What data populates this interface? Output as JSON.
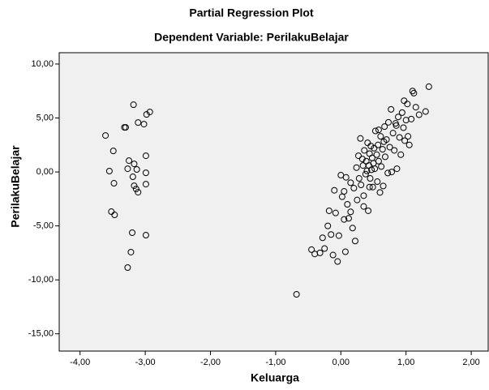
{
  "chart_data": {
    "type": "scatter",
    "title": "Partial Regression Plot",
    "subtitle": "Dependent Variable: PerilakuBelajar",
    "xlabel": "Keluarga",
    "ylabel": "PerilakuBelajar",
    "marker_color": "#000000",
    "plot_background": "#f0f0f0",
    "grid": false,
    "xlim": [
      -4.32,
      2.26
    ],
    "ylim": [
      -16.6,
      11.05
    ],
    "xticks": [
      {
        "value": -4,
        "label": "-4,00"
      },
      {
        "value": -3,
        "label": "-3,00"
      },
      {
        "value": -2,
        "label": "-2,00"
      },
      {
        "value": -1,
        "label": "-1,00"
      },
      {
        "value": 0,
        "label": "0,00"
      },
      {
        "value": 1,
        "label": "1,00"
      },
      {
        "value": 2,
        "label": "2,00"
      }
    ],
    "yticks": [
      {
        "value": 10,
        "label": "10,00"
      },
      {
        "value": 5,
        "label": "5,00"
      },
      {
        "value": 0,
        "label": "0,00"
      },
      {
        "value": -5,
        "label": "-5,00"
      },
      {
        "value": -10,
        "label": "-10,00"
      },
      {
        "value": -15,
        "label": "-15,00"
      }
    ],
    "x": [
      -3.18,
      -3.61,
      -3.3,
      -3.32,
      -3.11,
      -3.02,
      -2.98,
      -2.93,
      -3.49,
      -2.99,
      -3.55,
      -3.25,
      -3.17,
      -3.27,
      -3.13,
      -2.99,
      -3.19,
      -3.48,
      -3.17,
      -3.14,
      -3.11,
      -2.99,
      -3.52,
      -3.47,
      -3.2,
      -2.99,
      -3.22,
      -3.27,
      -0.68,
      -0.45,
      -0.4,
      -0.32,
      -0.28,
      -0.25,
      -0.2,
      -0.18,
      -0.15,
      -0.12,
      -0.1,
      -0.08,
      -0.05,
      -0.03,
      0.0,
      0.02,
      0.05,
      0.07,
      0.08,
      0.1,
      0.12,
      0.15,
      0.18,
      0.2,
      0.22,
      0.24,
      0.25,
      0.27,
      0.28,
      0.3,
      0.31,
      0.33,
      0.34,
      0.35,
      0.36,
      0.38,
      0.39,
      0.4,
      0.41,
      0.42,
      0.43,
      0.44,
      0.45,
      0.46,
      0.47,
      0.48,
      0.49,
      0.5,
      0.51,
      0.52,
      0.53,
      0.55,
      0.56,
      0.57,
      0.58,
      0.6,
      0.61,
      0.62,
      0.64,
      0.65,
      0.67,
      0.68,
      0.7,
      0.72,
      0.73,
      0.75,
      0.77,
      0.78,
      0.8,
      0.82,
      0.84,
      0.86,
      0.88,
      0.9,
      0.92,
      0.94,
      0.96,
      0.98,
      1.0,
      1.02,
      1.05,
      1.08,
      1.12,
      1.15,
      1.2,
      1.3,
      1.35,
      1.1,
      0.97,
      1.03,
      0.85,
      0.35,
      0.15,
      0.05,
      0.44,
      0.58,
      0.66
    ],
    "y": [
      6.23,
      3.38,
      4.13,
      4.13,
      4.58,
      4.43,
      5.33,
      5.56,
      1.95,
      1.5,
      0.08,
      1.05,
      0.75,
      0.3,
      0.23,
      -0.08,
      -0.45,
      -1.05,
      -1.28,
      -1.58,
      -1.88,
      -1.13,
      -3.68,
      -3.98,
      -5.63,
      -5.86,
      -7.43,
      -8.86,
      -11.34,
      -7.2,
      -7.6,
      -7.5,
      -6.1,
      -7.1,
      -5.0,
      -3.6,
      -5.8,
      -7.7,
      -1.7,
      -3.8,
      -8.3,
      -5.9,
      -0.3,
      -2.3,
      -4.4,
      -7.4,
      -0.5,
      -3.0,
      -4.3,
      -1.0,
      -5.2,
      -1.5,
      -6.4,
      0.4,
      -2.6,
      1.5,
      -0.6,
      3.1,
      -1.2,
      1.2,
      0.6,
      -2.2,
      2.0,
      -0.2,
      1.0,
      0.1,
      2.7,
      -3.6,
      0.6,
      1.7,
      -0.6,
      2.4,
      0.2,
      1.3,
      -1.4,
      0.8,
      2.2,
      0.3,
      3.8,
      1.6,
      -0.9,
      2.5,
      1.0,
      -1.9,
      3.3,
      0.5,
      2.1,
      -1.3,
      4.2,
      1.4,
      3.0,
      -0.1,
      4.6,
      2.3,
      5.8,
      0.0,
      3.6,
      2.0,
      4.5,
      0.3,
      5.1,
      3.2,
      1.6,
      5.5,
      4.1,
      2.9,
      4.8,
      6.3,
      2.5,
      4.9,
      7.3,
      6.0,
      5.3,
      5.6,
      7.9,
      7.5,
      6.6,
      3.3,
      4.3,
      -3.2,
      -3.7,
      -1.8,
      -1.4,
      3.9,
      2.8
    ]
  }
}
